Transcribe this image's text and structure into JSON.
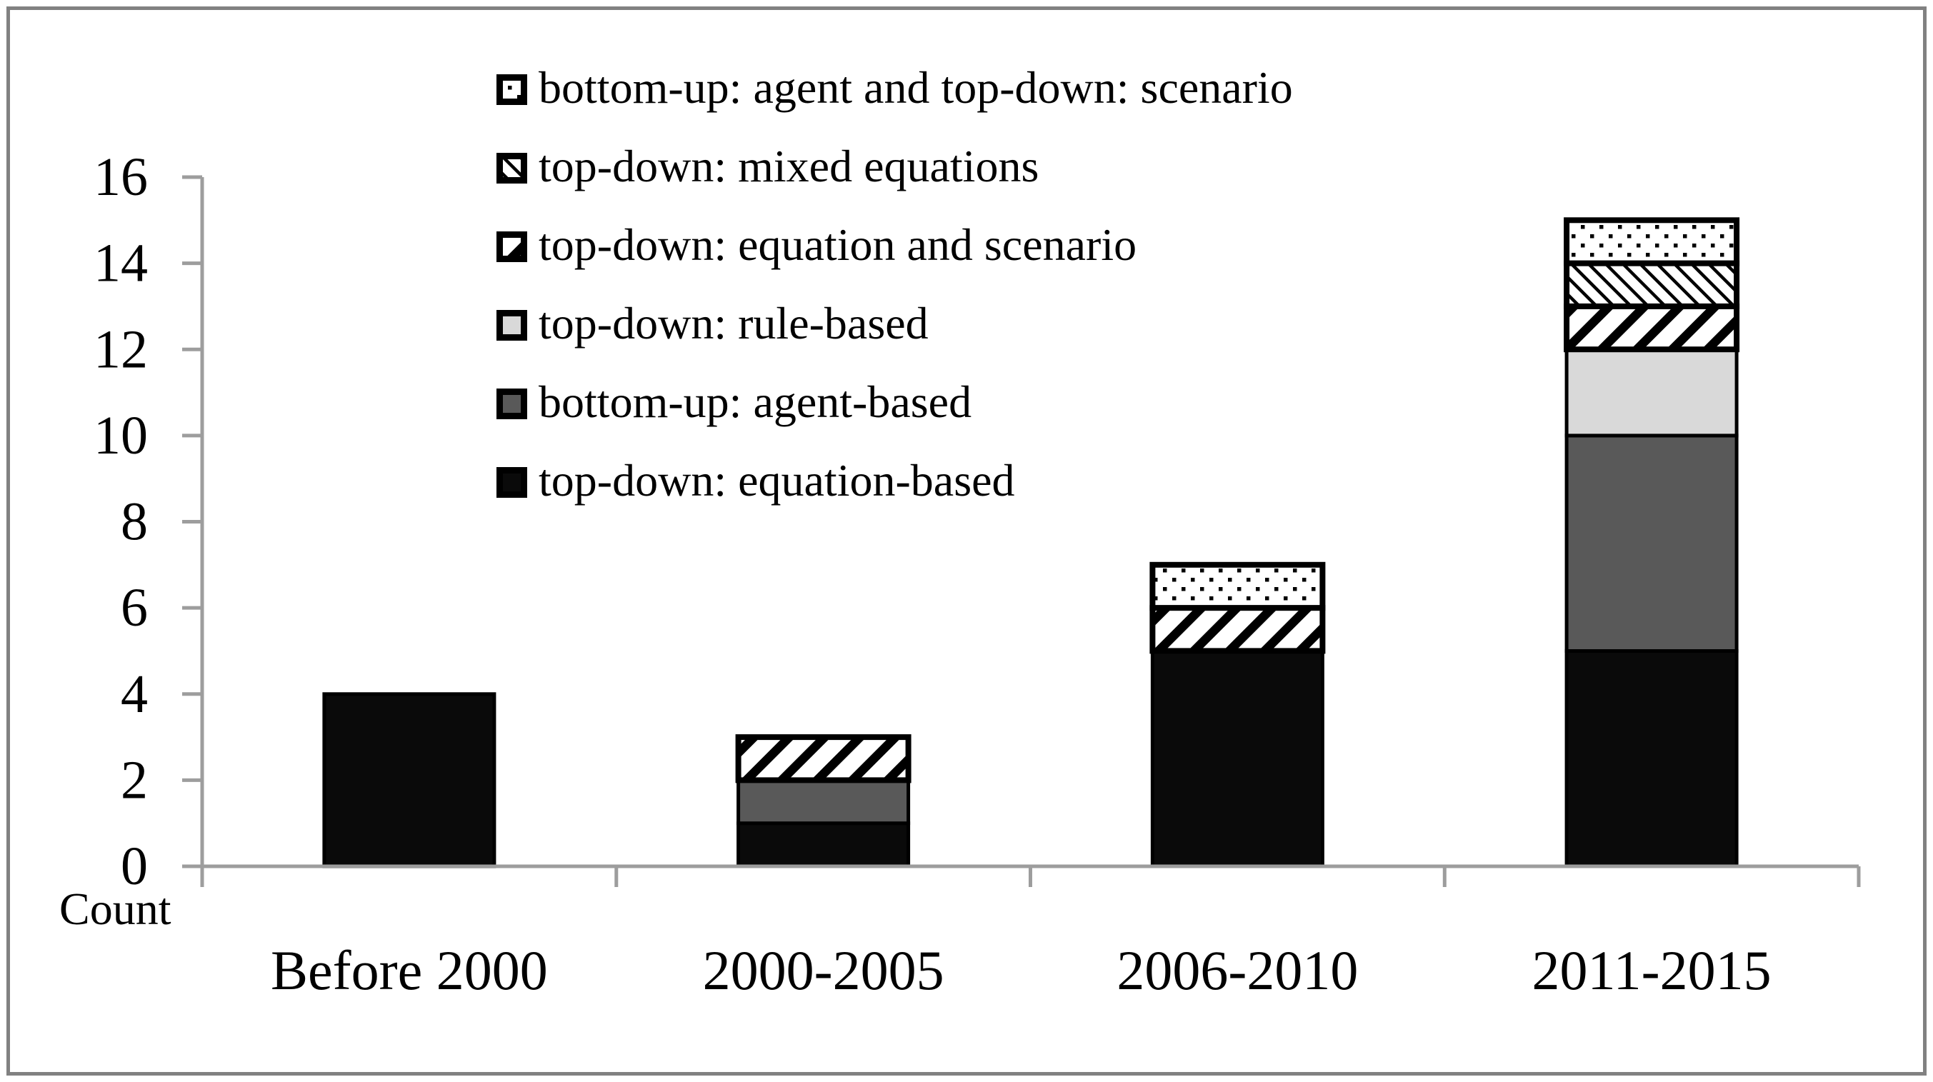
{
  "chart_data": {
    "type": "bar",
    "stacked": true,
    "title": "",
    "xlabel": "",
    "ylabel": "Count",
    "categories": [
      "Before 2000",
      "2000-2005",
      "2006-2010",
      "2011-2015"
    ],
    "series": [
      {
        "name": "top-down: equation-based",
        "swatch": "solid-black",
        "values": [
          4,
          1,
          5,
          5
        ]
      },
      {
        "name": "bottom-up: agent-based",
        "swatch": "solid-dark-gray",
        "values": [
          0,
          1,
          0,
          5
        ]
      },
      {
        "name": "top-down: rule-based",
        "swatch": "solid-light-gray",
        "values": [
          0,
          0,
          0,
          2
        ]
      },
      {
        "name": "top-down: equation and scenario",
        "swatch": "diagonal-stripes",
        "values": [
          0,
          1,
          1,
          1
        ]
      },
      {
        "name": "top-down: mixed equations",
        "swatch": "diagonal-hatch-thin",
        "values": [
          0,
          0,
          0,
          1
        ]
      },
      {
        "name": "bottom-up: agent and top-down: scenario",
        "swatch": "dotted",
        "values": [
          0,
          0,
          1,
          1
        ]
      }
    ],
    "totals": [
      4,
      3,
      7,
      15
    ],
    "yticks": [
      0,
      2,
      4,
      6,
      8,
      10,
      12,
      14,
      16
    ],
    "ylim": [
      0,
      16
    ],
    "grid": false,
    "legend_position": "top-center-inside",
    "legend_order_top_to_bottom": [
      "bottom-up: agent and top-down: scenario",
      "top-down: mixed equations",
      "top-down: equation and scenario",
      "top-down: rule-based",
      "bottom-up: agent-based",
      "top-down: equation-based"
    ]
  },
  "colors": {
    "bar_black": "#0a0a0a",
    "bar_dark_gray": "#595959",
    "bar_light_gray": "#d9d9d9",
    "pattern_ink": "#000000",
    "pattern_bg": "#ffffff",
    "axis_gray": "#9d9d9d",
    "frame_gray": "#818181",
    "text_black": "#000000"
  }
}
